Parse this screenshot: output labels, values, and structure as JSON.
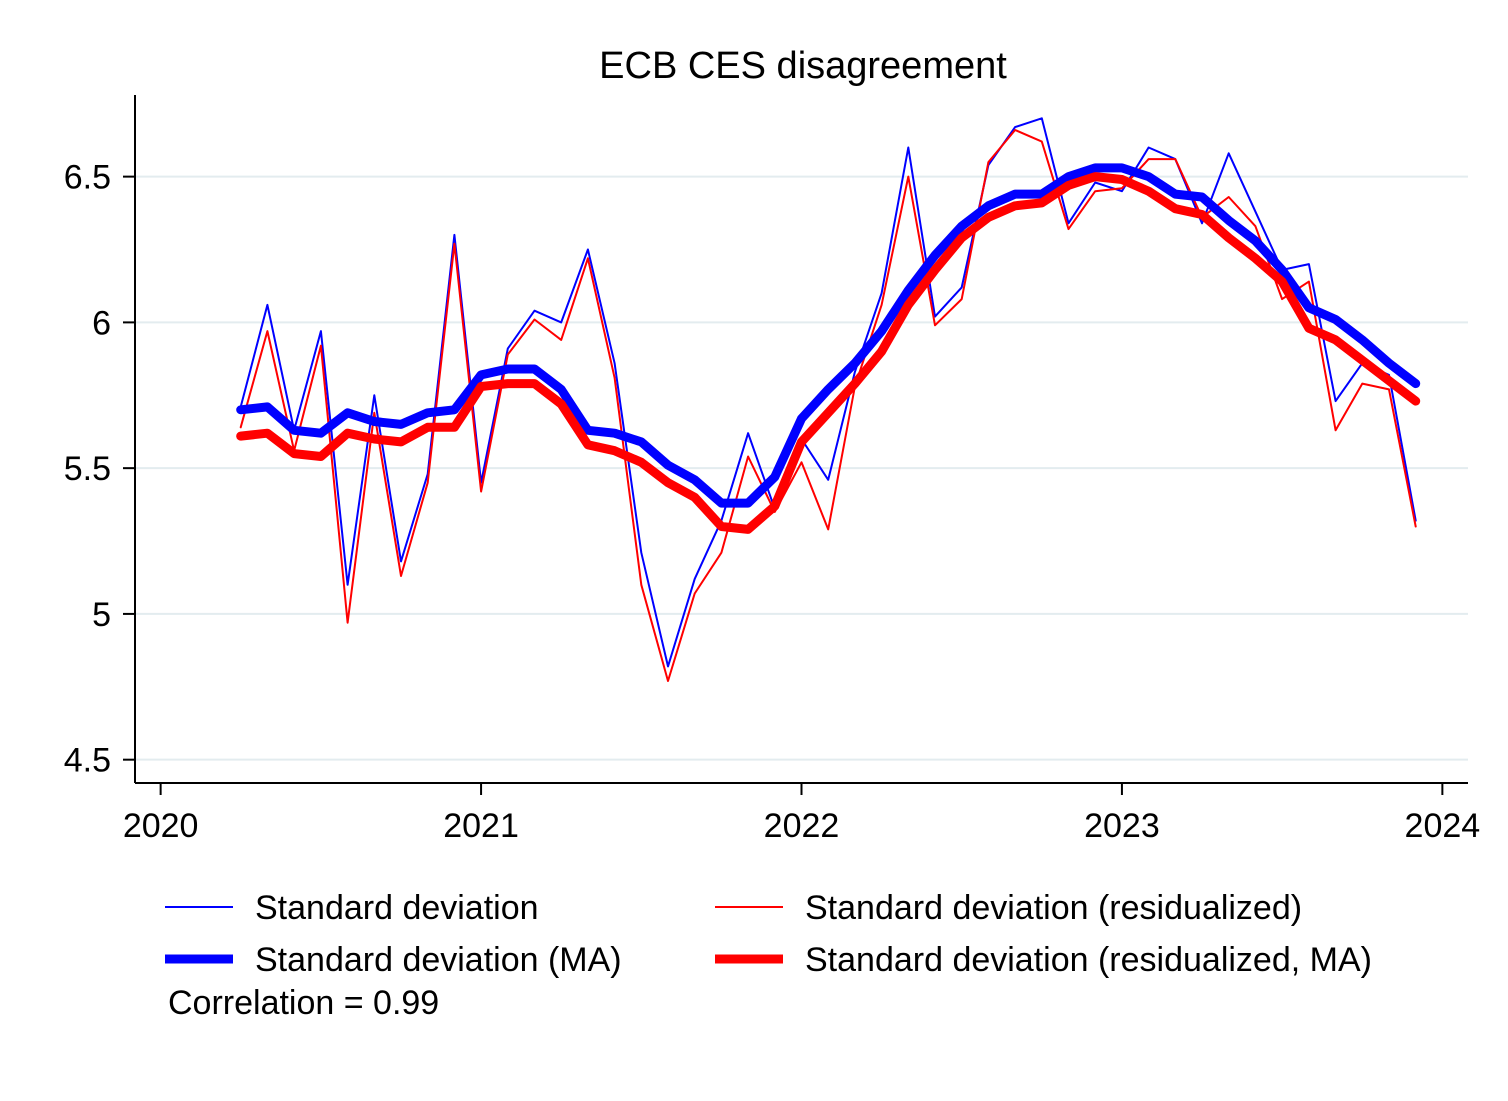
{
  "chart_data": {
    "type": "line",
    "title": "ECB CES disagreement",
    "xlabel": "",
    "ylabel": "",
    "xlim": [
      2019.92,
      2024.08
    ],
    "ylim": [
      4.42,
      6.78
    ],
    "x_ticks": [
      2020,
      2021,
      2022,
      2023,
      2024
    ],
    "x_tick_labels": [
      "2020",
      "2021",
      "2022",
      "2023",
      "2024"
    ],
    "y_ticks": [
      4.5,
      5,
      5.5,
      6,
      6.5
    ],
    "y_tick_labels": [
      "4.5",
      "5",
      "5.5",
      "6",
      "6.5"
    ],
    "grid": "horizontal",
    "legend_position": "bottom",
    "annotation": "Correlation = 0.99",
    "dates": [
      "2020-04",
      "2020-05",
      "2020-06",
      "2020-07",
      "2020-08",
      "2020-09",
      "2020-10",
      "2020-11",
      "2020-12",
      "2021-01",
      "2021-02",
      "2021-03",
      "2021-04",
      "2021-05",
      "2021-06",
      "2021-07",
      "2021-08",
      "2021-09",
      "2021-10",
      "2021-11",
      "2021-12",
      "2022-01",
      "2022-02",
      "2022-03",
      "2022-04",
      "2022-05",
      "2022-06",
      "2022-07",
      "2022-08",
      "2022-09",
      "2022-10",
      "2022-11",
      "2022-12",
      "2023-01",
      "2023-02",
      "2023-03",
      "2023-04",
      "2023-05",
      "2023-06",
      "2023-07",
      "2023-08",
      "2023-09",
      "2023-10",
      "2023-11",
      "2023-12"
    ],
    "series": [
      {
        "name": "Standard deviation",
        "color": "#0000ff",
        "style": "thin",
        "values": [
          5.71,
          6.06,
          5.63,
          5.97,
          5.1,
          5.75,
          5.18,
          5.48,
          6.3,
          5.45,
          5.91,
          6.04,
          6.0,
          6.25,
          5.86,
          5.21,
          4.82,
          5.12,
          5.32,
          5.62,
          5.36,
          5.6,
          5.46,
          5.83,
          6.1,
          6.6,
          6.02,
          6.12,
          6.54,
          6.67,
          6.7,
          6.34,
          6.48,
          6.45,
          6.6,
          6.56,
          6.34,
          6.58,
          6.38,
          6.18,
          6.2,
          5.73,
          5.86,
          5.82,
          5.32
        ]
      },
      {
        "name": "Standard deviation (residualized)",
        "color": "#ff0000",
        "style": "thin",
        "values": [
          5.64,
          5.97,
          5.56,
          5.92,
          4.97,
          5.69,
          5.13,
          5.45,
          6.27,
          5.42,
          5.89,
          6.01,
          5.94,
          6.22,
          5.81,
          5.1,
          4.77,
          5.07,
          5.21,
          5.54,
          5.35,
          5.52,
          5.29,
          5.78,
          6.06,
          6.5,
          5.99,
          6.08,
          6.55,
          6.66,
          6.62,
          6.32,
          6.45,
          6.46,
          6.56,
          6.56,
          6.36,
          6.43,
          6.33,
          6.08,
          6.14,
          5.63,
          5.79,
          5.77,
          5.3
        ]
      },
      {
        "name": "Standard deviation (MA)",
        "color": "#0000ff",
        "style": "thick",
        "values": [
          5.7,
          5.71,
          5.63,
          5.62,
          5.69,
          5.66,
          5.65,
          5.69,
          5.7,
          5.82,
          5.84,
          5.84,
          5.77,
          5.63,
          5.62,
          5.59,
          5.51,
          5.46,
          5.38,
          5.38,
          5.47,
          5.67,
          5.77,
          5.86,
          5.97,
          6.11,
          6.23,
          6.33,
          6.4,
          6.44,
          6.44,
          6.5,
          6.53,
          6.53,
          6.5,
          6.44,
          6.43,
          6.35,
          6.28,
          6.18,
          6.05,
          6.01,
          5.94,
          5.86,
          5.79
        ]
      },
      {
        "name": "Standard deviation (residualized, MA)",
        "color": "#ff0000",
        "style": "thick",
        "values": [
          5.61,
          5.62,
          5.55,
          5.54,
          5.62,
          5.6,
          5.59,
          5.64,
          5.64,
          5.78,
          5.79,
          5.79,
          5.72,
          5.58,
          5.56,
          5.52,
          5.45,
          5.4,
          5.3,
          5.29,
          5.37,
          5.59,
          5.69,
          5.79,
          5.9,
          6.06,
          6.18,
          6.29,
          6.36,
          6.4,
          6.41,
          6.47,
          6.5,
          6.49,
          6.45,
          6.39,
          6.37,
          6.29,
          6.22,
          6.14,
          5.98,
          5.94,
          5.87,
          5.8,
          5.73
        ]
      }
    ]
  }
}
